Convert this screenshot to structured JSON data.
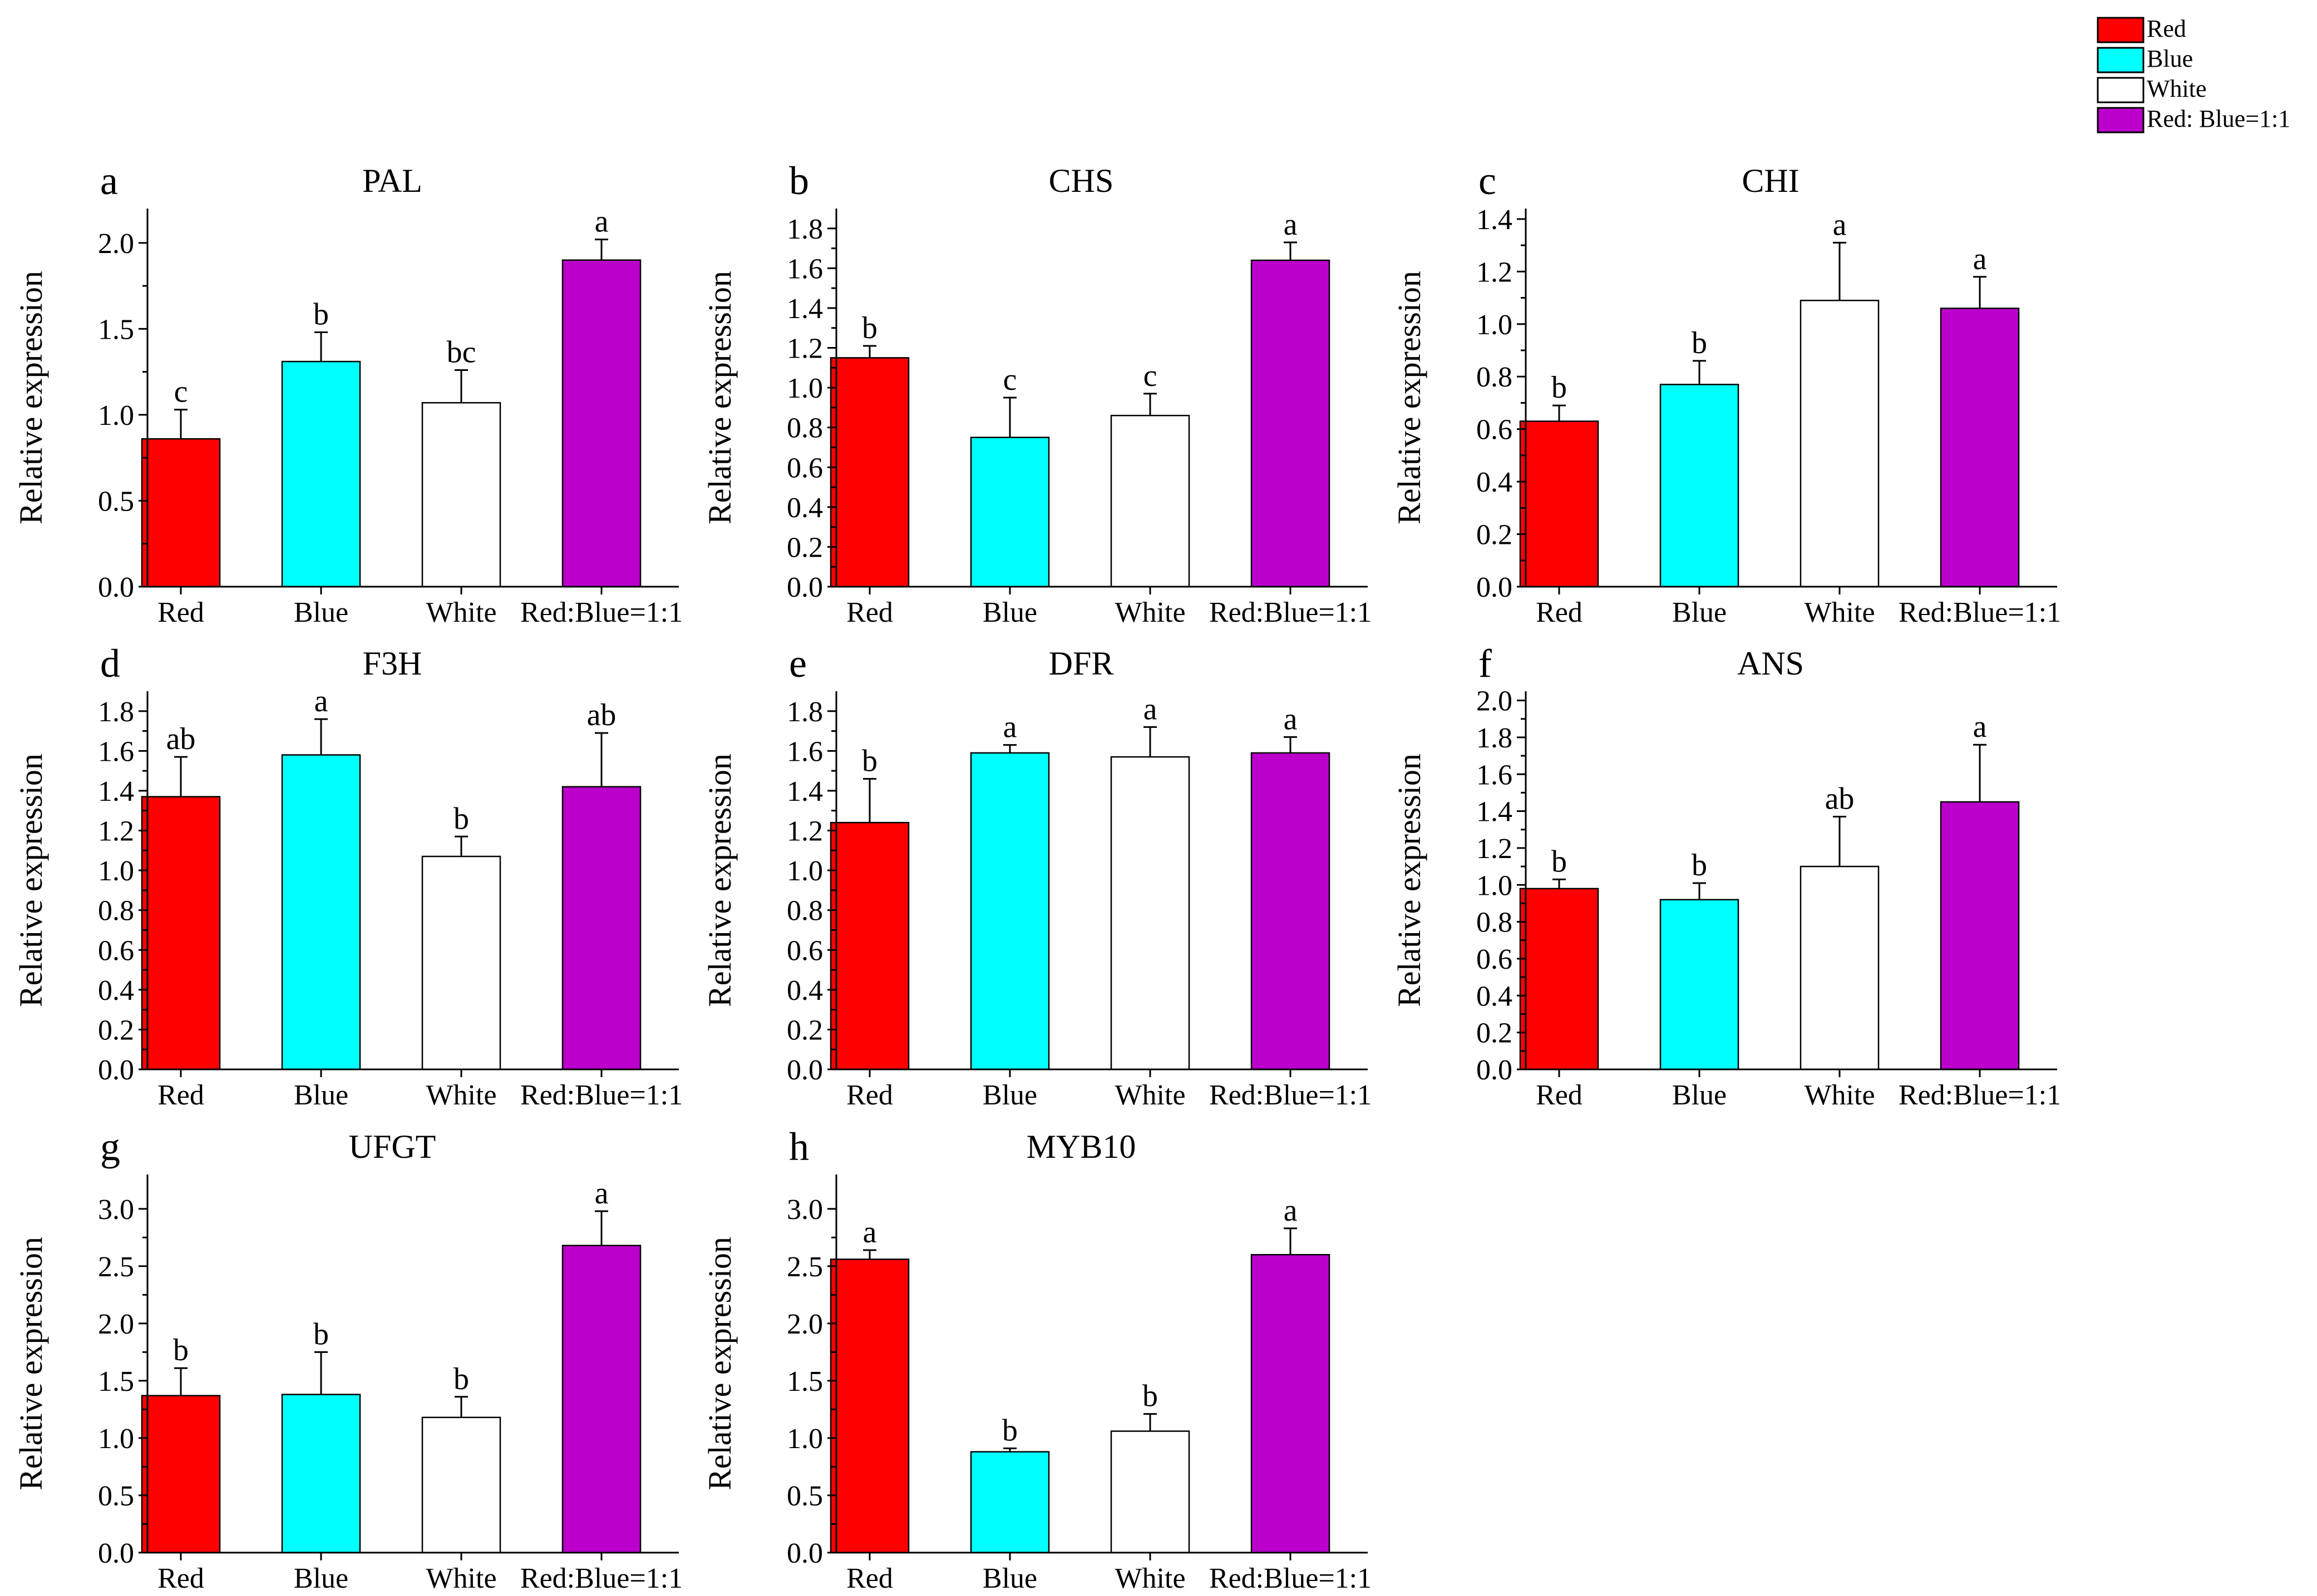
{
  "legend": {
    "items": [
      {
        "label": "Red",
        "color": "#ff0000"
      },
      {
        "label": "Blue",
        "color": "#00ffff"
      },
      {
        "label": "White",
        "color": "#ffffff"
      },
      {
        "label": "Red: Blue=1:1",
        "color": "#bb00cc"
      }
    ]
  },
  "chart_data": [
    {
      "type": "bar",
      "panel": "a",
      "title": "PAL",
      "categories": [
        "Red",
        "Blue",
        "White",
        "Red:Blue=1:1"
      ],
      "colors": [
        "#ff0000",
        "#00ffff",
        "#ffffff",
        "#bb00cc"
      ],
      "values": [
        0.86,
        1.31,
        1.07,
        1.9
      ],
      "errors": [
        0.17,
        0.17,
        0.19,
        0.12
      ],
      "significance": [
        "c",
        "b",
        "bc",
        "a"
      ],
      "ylabel": "Relative expression",
      "xlabel": "",
      "ylim": [
        0,
        2.2
      ],
      "yticks": [
        "0.0",
        "0.5",
        "1.0",
        "1.5",
        "2.0"
      ]
    },
    {
      "type": "bar",
      "panel": "b",
      "title": "CHS",
      "categories": [
        "Red",
        "Blue",
        "White",
        "Red:Blue=1:1"
      ],
      "colors": [
        "#ff0000",
        "#00ffff",
        "#ffffff",
        "#bb00cc"
      ],
      "values": [
        1.15,
        0.75,
        0.86,
        1.64
      ],
      "errors": [
        0.06,
        0.2,
        0.11,
        0.09
      ],
      "significance": [
        "b",
        "c",
        "c",
        "a"
      ],
      "ylabel": "Relative expression",
      "xlabel": "",
      "ylim": [
        0,
        1.9
      ],
      "yticks": [
        "0.0",
        "0.2",
        "0.4",
        "0.6",
        "0.8",
        "1.0",
        "1.2",
        "1.4",
        "1.6",
        "1.8"
      ]
    },
    {
      "type": "bar",
      "panel": "c",
      "title": "CHI",
      "categories": [
        "Red",
        "Blue",
        "White",
        "Red:Blue=1:1"
      ],
      "colors": [
        "#ff0000",
        "#00ffff",
        "#ffffff",
        "#bb00cc"
      ],
      "values": [
        0.63,
        0.77,
        1.09,
        1.06
      ],
      "errors": [
        0.06,
        0.09,
        0.22,
        0.12
      ],
      "significance": [
        "b",
        "b",
        "a",
        "a"
      ],
      "ylabel": "Relative expression",
      "xlabel": "",
      "ylim": [
        0,
        1.44
      ],
      "yticks": [
        "0.0",
        "0.2",
        "0.4",
        "0.6",
        "0.8",
        "1.0",
        "1.2",
        "1.4"
      ]
    },
    {
      "type": "bar",
      "panel": "d",
      "title": "F3H",
      "categories": [
        "Red",
        "Blue",
        "White",
        "Red:Blue=1:1"
      ],
      "colors": [
        "#ff0000",
        "#00ffff",
        "#ffffff",
        "#bb00cc"
      ],
      "values": [
        1.37,
        1.58,
        1.07,
        1.42
      ],
      "errors": [
        0.2,
        0.18,
        0.1,
        0.27
      ],
      "significance": [
        "ab",
        "a",
        "b",
        "ab"
      ],
      "ylabel": "Relative expression",
      "xlabel": "",
      "ylim": [
        0,
        1.9
      ],
      "yticks": [
        "0.0",
        "0.2",
        "0.4",
        "0.6",
        "0.8",
        "1.0",
        "1.2",
        "1.4",
        "1.6",
        "1.8"
      ]
    },
    {
      "type": "bar",
      "panel": "e",
      "title": "DFR",
      "categories": [
        "Red",
        "Blue",
        "White",
        "Red:Blue=1:1"
      ],
      "colors": [
        "#ff0000",
        "#00ffff",
        "#ffffff",
        "#bb00cc"
      ],
      "values": [
        1.24,
        1.59,
        1.57,
        1.59
      ],
      "errors": [
        0.22,
        0.04,
        0.15,
        0.08
      ],
      "significance": [
        "b",
        "a",
        "a",
        "a"
      ],
      "ylabel": "Relative expression",
      "xlabel": "",
      "ylim": [
        0,
        1.9
      ],
      "yticks": [
        "0.0",
        "0.2",
        "0.4",
        "0.6",
        "0.8",
        "1.0",
        "1.2",
        "1.4",
        "1.6",
        "1.8"
      ]
    },
    {
      "type": "bar",
      "panel": "f",
      "title": "ANS",
      "categories": [
        "Red",
        "Blue",
        "White",
        "Red:Blue=1:1"
      ],
      "colors": [
        "#ff0000",
        "#00ffff",
        "#ffffff",
        "#bb00cc"
      ],
      "values": [
        0.98,
        0.92,
        1.1,
        1.45
      ],
      "errors": [
        0.05,
        0.09,
        0.27,
        0.31
      ],
      "significance": [
        "b",
        "b",
        "ab",
        "a"
      ],
      "ylabel": "Relative expression",
      "xlabel": "",
      "ylim": [
        0,
        2.05
      ],
      "yticks": [
        "0.0",
        "0.2",
        "0.4",
        "0.6",
        "0.8",
        "1.0",
        "1.2",
        "1.4",
        "1.6",
        "1.8",
        "2.0"
      ]
    },
    {
      "type": "bar",
      "panel": "g",
      "title": "UFGT",
      "categories": [
        "Red",
        "Blue",
        "White",
        "Red:Blue=1:1"
      ],
      "colors": [
        "#ff0000",
        "#00ffff",
        "#ffffff",
        "#bb00cc"
      ],
      "values": [
        1.37,
        1.38,
        1.18,
        2.68
      ],
      "errors": [
        0.24,
        0.37,
        0.18,
        0.3
      ],
      "significance": [
        "b",
        "b",
        "b",
        "a"
      ],
      "ylabel": "Relative expression",
      "xlabel": "",
      "ylim": [
        0,
        3.3
      ],
      "yticks": [
        "0.0",
        "0.5",
        "1.0",
        "1.5",
        "2.0",
        "2.5",
        "3.0"
      ]
    },
    {
      "type": "bar",
      "panel": "h",
      "title": "MYB10",
      "categories": [
        "Red",
        "Blue",
        "White",
        "Red:Blue=1:1"
      ],
      "colors": [
        "#ff0000",
        "#00ffff",
        "#ffffff",
        "#bb00cc"
      ],
      "values": [
        2.56,
        0.88,
        1.06,
        2.6
      ],
      "errors": [
        0.08,
        0.03,
        0.15,
        0.23
      ],
      "significance": [
        "a",
        "b",
        "b",
        "a"
      ],
      "ylabel": "Relative expression",
      "xlabel": "",
      "ylim": [
        0,
        3.3
      ],
      "yticks": [
        "0.0",
        "0.5",
        "1.0",
        "1.5",
        "2.0",
        "2.5",
        "3.0"
      ]
    }
  ]
}
